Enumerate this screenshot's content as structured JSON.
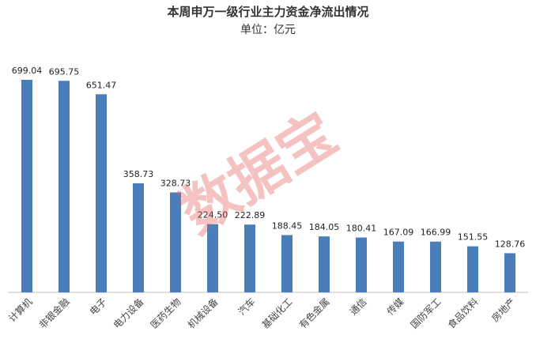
{
  "chart_data": {
    "type": "bar",
    "title": "本周申万一级行业主力资金净流出情况",
    "subtitle": "单位：亿元",
    "categories": [
      "计算机",
      "非银金融",
      "电子",
      "电力设备",
      "医药生物",
      "机械设备",
      "汽车",
      "基础化工",
      "有色金属",
      "通信",
      "传媒",
      "国防军工",
      "食品饮料",
      "房地产"
    ],
    "values": [
      699.04,
      695.75,
      651.47,
      358.73,
      328.73,
      224.5,
      222.89,
      188.45,
      184.05,
      180.41,
      167.09,
      166.99,
      151.55,
      128.76
    ],
    "value_labels": [
      "699.04",
      "695.75",
      "651.47",
      "358.73",
      "328.73",
      "224.50",
      "222.89",
      "188.45",
      "184.05",
      "180.41",
      "167.09",
      "166.99",
      "151.55",
      "128.76"
    ],
    "color": "#4a7ebb"
  },
  "watermark": "数据宝"
}
